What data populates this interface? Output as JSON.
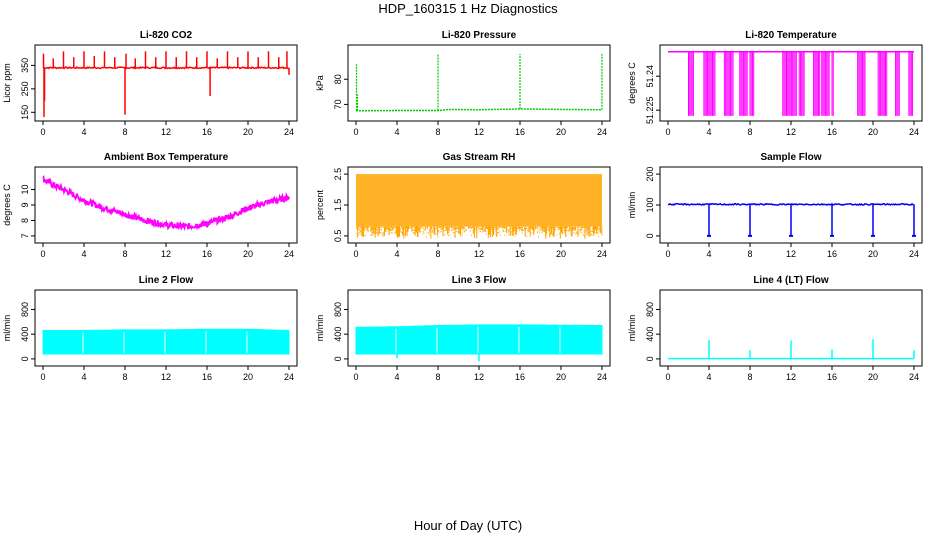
{
  "figure": {
    "title": "HDP_160315  1 Hz Diagnostics",
    "xlabel": "Hour of Day (UTC)"
  },
  "chart_data": [
    {
      "type": "line",
      "title": "Li-820 CO2",
      "ylabel": "Licor ppm",
      "color": "#ff0000",
      "xlim": [
        0,
        24
      ],
      "xticks": [
        0,
        4,
        8,
        12,
        16,
        20,
        24
      ],
      "ylim": [
        130,
        420
      ],
      "yticks": [
        150,
        250,
        350
      ],
      "baseline": 340,
      "noise": 6,
      "spikes": [
        {
          "x": 0.05,
          "y": 400
        },
        {
          "x": 0.1,
          "y": 130
        },
        {
          "x": 0.15,
          "y": 200
        },
        {
          "x": 1.0,
          "y": 380
        },
        {
          "x": 2.0,
          "y": 410
        },
        {
          "x": 3.0,
          "y": 385
        },
        {
          "x": 4.0,
          "y": 410
        },
        {
          "x": 5.0,
          "y": 390
        },
        {
          "x": 6.0,
          "y": 410
        },
        {
          "x": 7.0,
          "y": 385
        },
        {
          "x": 8.0,
          "y": 140
        },
        {
          "x": 8.1,
          "y": 400
        },
        {
          "x": 9.0,
          "y": 380
        },
        {
          "x": 10.0,
          "y": 410
        },
        {
          "x": 11.0,
          "y": 385
        },
        {
          "x": 12.0,
          "y": 410
        },
        {
          "x": 13.0,
          "y": 385
        },
        {
          "x": 14.0,
          "y": 410
        },
        {
          "x": 15.0,
          "y": 385
        },
        {
          "x": 16.0,
          "y": 410
        },
        {
          "x": 16.3,
          "y": 220
        },
        {
          "x": 17.0,
          "y": 380
        },
        {
          "x": 18.0,
          "y": 410
        },
        {
          "x": 19.0,
          "y": 385
        },
        {
          "x": 20.0,
          "y": 410
        },
        {
          "x": 21.0,
          "y": 385
        },
        {
          "x": 22.0,
          "y": 410
        },
        {
          "x": 23.0,
          "y": 385
        },
        {
          "x": 23.8,
          "y": 410
        },
        {
          "x": 24.0,
          "y": 310
        }
      ]
    },
    {
      "type": "line",
      "title": "Li-820 Pressure",
      "ylabel": "kPa",
      "color": "#00cc00",
      "xlim": [
        0,
        24
      ],
      "xticks": [
        0,
        4,
        8,
        12,
        16,
        20,
        24
      ],
      "ylim": [
        65,
        92
      ],
      "yticks": [
        70,
        80
      ],
      "baseline_points": [
        [
          0,
          67.5
        ],
        [
          6,
          67.6
        ],
        [
          8.2,
          67.6
        ],
        [
          9,
          68.0
        ],
        [
          12,
          67.9
        ],
        [
          16.2,
          68.2
        ],
        [
          20,
          68.0
        ],
        [
          24,
          67.9
        ]
      ],
      "spikes": [
        {
          "x": 0.05,
          "y": 86
        },
        {
          "x": 0.15,
          "y": 74
        },
        {
          "x": 8.0,
          "y": 90
        },
        {
          "x": 16.0,
          "y": 90
        },
        {
          "x": 24.0,
          "y": 90
        }
      ]
    },
    {
      "type": "line",
      "title": "Li-820 Temperature",
      "ylabel": "degrees C",
      "color": "#ff00ff",
      "xlim": [
        0,
        24
      ],
      "xticks": [
        0,
        4,
        8,
        12,
        16,
        20,
        24
      ],
      "ylim": [
        51.222,
        51.252
      ],
      "yticks": [
        51.225,
        51.24
      ],
      "baseline": 51.2508,
      "low": 51.2225,
      "drop_segments": [
        [
          2.0,
          2.6
        ],
        [
          3.5,
          4.6
        ],
        [
          5.5,
          6.4
        ],
        [
          7.0,
          7.8
        ],
        [
          8.0,
          8.4
        ],
        [
          11.2,
          12.6
        ],
        [
          12.8,
          13.3
        ],
        [
          14.2,
          14.8
        ],
        [
          15.0,
          15.8
        ],
        [
          16.0,
          16.2
        ],
        [
          18.5,
          19.3
        ],
        [
          20.5,
          21.4
        ],
        [
          22.2,
          22.6
        ],
        [
          23.5,
          23.9
        ]
      ]
    },
    {
      "type": "line",
      "title": "Ambient Box Temperature",
      "ylabel": "degrees C",
      "color": "#ff00ff",
      "xlim": [
        0,
        24
      ],
      "xticks": [
        0,
        4,
        8,
        12,
        16,
        20,
        24
      ],
      "ylim": [
        6.8,
        11.2
      ],
      "yticks": [
        7,
        8,
        9,
        10
      ],
      "points": [
        [
          0,
          10.7
        ],
        [
          1,
          10.3
        ],
        [
          2,
          10.0
        ],
        [
          4,
          9.3
        ],
        [
          6,
          8.8
        ],
        [
          8,
          8.4
        ],
        [
          10,
          8.0
        ],
        [
          12,
          7.7
        ],
        [
          14,
          7.6
        ],
        [
          15,
          7.7
        ],
        [
          16,
          7.8
        ],
        [
          18,
          8.2
        ],
        [
          20,
          8.8
        ],
        [
          22,
          9.2
        ],
        [
          24,
          9.5
        ]
      ],
      "band": 0.4
    },
    {
      "type": "scatter",
      "title": "Gas Stream RH",
      "ylabel": "percent",
      "color": "#ffa500",
      "xlim": [
        0,
        24
      ],
      "xticks": [
        0,
        4,
        8,
        12,
        16,
        20,
        24
      ],
      "ylim": [
        0.4,
        2.6
      ],
      "yticks": [
        0.5,
        1.5,
        2.5
      ],
      "band_top": 2.5,
      "band_bottom": 0.8
    },
    {
      "type": "line",
      "title": "Sample Flow",
      "ylabel": "ml/min",
      "color": "#0000ff",
      "xlim": [
        0,
        24
      ],
      "xticks": [
        0,
        4,
        8,
        12,
        16,
        20,
        24
      ],
      "ylim": [
        -10,
        210
      ],
      "yticks": [
        0,
        100,
        200
      ],
      "baseline": 102,
      "noise": 4,
      "dips": [
        4.0,
        8.0,
        12.0,
        16.0,
        20.0,
        24.0
      ],
      "dip_value": 0
    },
    {
      "type": "area",
      "title": "Line 2 Flow",
      "ylabel": "ml/min",
      "color": "#00ffff",
      "xlim": [
        0,
        24
      ],
      "xticks": [
        0,
        4,
        8,
        12,
        16,
        20,
        24
      ],
      "ylim": [
        -50,
        1050
      ],
      "yticks": [
        0,
        400,
        800
      ],
      "top_points": [
        [
          0,
          460
        ],
        [
          4,
          460
        ],
        [
          8,
          470
        ],
        [
          12,
          470
        ],
        [
          16,
          480
        ],
        [
          20,
          480
        ],
        [
          24,
          460
        ]
      ],
      "bottom": 80,
      "gaps": [
        3.9,
        7.9,
        11.9,
        15.9,
        19.9
      ]
    },
    {
      "type": "area",
      "title": "Line 3 Flow",
      "ylabel": "ml/min",
      "color": "#00ffff",
      "xlim": [
        0,
        24
      ],
      "xticks": [
        0,
        4,
        8,
        12,
        16,
        20,
        24
      ],
      "ylim": [
        -50,
        1050
      ],
      "yticks": [
        0,
        400,
        800
      ],
      "top_points": [
        [
          0,
          510
        ],
        [
          4,
          520
        ],
        [
          8,
          540
        ],
        [
          12,
          550
        ],
        [
          16,
          550
        ],
        [
          20,
          545
        ],
        [
          24,
          540
        ]
      ],
      "bottom": 80,
      "gaps": [
        3.9,
        7.9,
        11.9,
        15.9,
        19.9
      ],
      "spikes": [
        {
          "x": 4.0,
          "y": 10
        },
        {
          "x": 12.0,
          "y": -40
        }
      ]
    },
    {
      "type": "line",
      "title": "Line 4 (LT) Flow",
      "ylabel": "ml/min",
      "color": "#00ffff",
      "xlim": [
        0,
        24
      ],
      "xticks": [
        0,
        4,
        8,
        12,
        16,
        20,
        24
      ],
      "ylim": [
        -50,
        1050
      ],
      "yticks": [
        0,
        400,
        800
      ],
      "baseline": 5,
      "spikes": [
        {
          "x": 4.0,
          "y": 310
        },
        {
          "x": 8.0,
          "y": 140
        },
        {
          "x": 12.0,
          "y": 300
        },
        {
          "x": 16.0,
          "y": 150
        },
        {
          "x": 20.0,
          "y": 320
        },
        {
          "x": 24.0,
          "y": 140
        }
      ]
    }
  ]
}
